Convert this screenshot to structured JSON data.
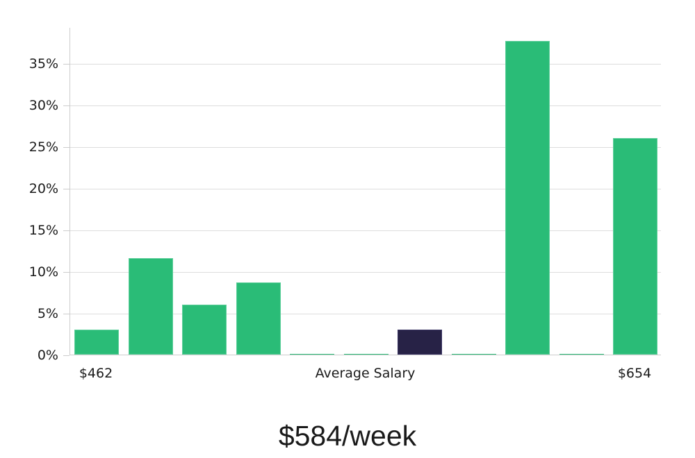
{
  "chart_data": {
    "type": "bar",
    "title": "$584/week",
    "categories": [
      "$462",
      "",
      "",
      "",
      "",
      "Average Salary",
      "",
      "",
      "",
      "",
      "$654"
    ],
    "values": [
      3,
      11.6,
      6,
      8.7,
      0.1,
      0.1,
      3,
      0.1,
      37.6,
      0.1,
      26
    ],
    "value_unit": "%",
    "highlighted_bar_index": 6,
    "y_ticks": [
      {
        "value": 0,
        "label": "0%"
      },
      {
        "value": 5,
        "label": "5%"
      },
      {
        "value": 10,
        "label": "10%"
      },
      {
        "value": 15,
        "label": "15%"
      },
      {
        "value": 20,
        "label": "20%"
      },
      {
        "value": 25,
        "label": "25%"
      },
      {
        "value": 30,
        "label": "30%"
      },
      {
        "value": 35,
        "label": "35%"
      }
    ],
    "ylim": [
      0,
      39.3
    ],
    "grid": true,
    "legend": false,
    "colors": {
      "bar": "#2abc77",
      "bar_edge": "#5ecf9b",
      "highlight_bar": "#272246",
      "highlight_bar_edge": "#3a3463",
      "gridline": "#dddddd",
      "axis": "#cccccc",
      "text": "#1a1a1a"
    }
  }
}
